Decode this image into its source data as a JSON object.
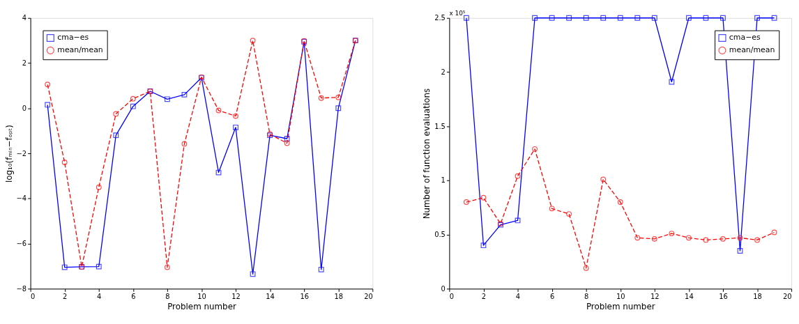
{
  "chart_data": [
    {
      "type": "line",
      "xlabel": "Problem number",
      "ylabel": "log₁₀(fₘᵢₙ−fₒₚₜ)",
      "x": [
        1,
        2,
        3,
        4,
        5,
        6,
        7,
        8,
        9,
        10,
        11,
        12,
        13,
        14,
        15,
        16,
        17,
        18,
        19
      ],
      "xlim": [
        0,
        20
      ],
      "xticks": [
        0,
        2,
        4,
        6,
        8,
        10,
        12,
        14,
        16,
        18,
        20
      ],
      "ylim": [
        -8,
        4
      ],
      "yticks": [
        -8,
        -6,
        -4,
        -2,
        0,
        2,
        4
      ],
      "grid": false,
      "legend": "top left",
      "series": [
        {
          "name": "cma−es",
          "color": "#0000ff",
          "marker": "square",
          "line_style": "solid",
          "values": [
            0.15,
            -7.05,
            -7.03,
            -7.02,
            -1.2,
            0.08,
            0.75,
            0.4,
            0.6,
            1.35,
            -2.85,
            -0.85,
            -7.35,
            -1.2,
            -1.35,
            2.95,
            -7.15,
            0.0,
            3.0
          ]
        },
        {
          "name": "mean/mean",
          "color": "#ff0000",
          "marker": "circle",
          "line_style": "dashed",
          "values": [
            1.05,
            -2.4,
            -7.03,
            -3.5,
            -0.25,
            0.42,
            0.75,
            -7.05,
            -1.58,
            1.38,
            -0.1,
            -0.35,
            3.0,
            -1.15,
            -1.55,
            2.98,
            0.45,
            0.48,
            3.0
          ]
        }
      ]
    },
    {
      "type": "line",
      "xlabel": "Problem number",
      "ylabel": "Number of function  evaluations",
      "annotations": [
        "x 10⁵"
      ],
      "x": [
        1,
        2,
        3,
        4,
        5,
        6,
        7,
        8,
        9,
        10,
        11,
        12,
        13,
        14,
        15,
        16,
        17,
        18,
        19
      ],
      "xlim": [
        0,
        20
      ],
      "xticks": [
        0,
        2,
        4,
        6,
        8,
        10,
        12,
        14,
        16,
        18,
        20
      ],
      "ylim": [
        0,
        2.5
      ],
      "yticks": [
        0,
        0.5,
        1,
        1.5,
        2,
        2.5
      ],
      "grid": false,
      "legend": "top right",
      "series": [
        {
          "name": "cma−es",
          "color": "#0000ff",
          "marker": "square",
          "line_style": "solid",
          "values": [
            2.5,
            0.4,
            0.59,
            0.63,
            2.5,
            2.5,
            2.5,
            2.5,
            2.5,
            2.5,
            2.5,
            2.5,
            1.91,
            2.5,
            2.5,
            2.5,
            0.35,
            2.5,
            2.5
          ]
        },
        {
          "name": "mean/mean",
          "color": "#ff0000",
          "marker": "circle",
          "line_style": "dashed",
          "values": [
            0.8,
            0.84,
            0.6,
            1.04,
            1.29,
            0.74,
            0.69,
            0.19,
            1.01,
            0.8,
            0.47,
            0.46,
            0.51,
            0.47,
            0.45,
            0.46,
            0.47,
            0.45,
            0.52
          ]
        }
      ]
    }
  ]
}
